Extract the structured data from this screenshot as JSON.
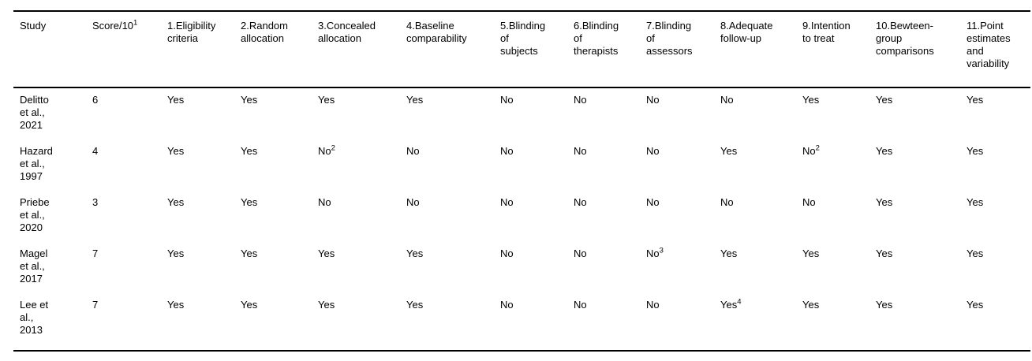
{
  "page": {
    "background_color": "#ffffff",
    "text_color": "#000000",
    "rule_color": "#000000"
  },
  "table": {
    "description": "PEDro-style methodological quality assessment table",
    "columns": [
      {
        "label": "Study"
      },
      {
        "label": "Score/10^1"
      },
      {
        "label": "1.Eligibility\ncriteria"
      },
      {
        "label": "2.Random\nallocation"
      },
      {
        "label": "3.Concealed\nallocation"
      },
      {
        "label": "4.Baseline\ncomparability"
      },
      {
        "label": "5.Blinding\nof\nsubjects"
      },
      {
        "label": "6.Blinding\nof\ntherapists"
      },
      {
        "label": "7.Blinding\nof\nassessors"
      },
      {
        "label": "8.Adequate\nfollow-up"
      },
      {
        "label": "9.Intention\nto treat"
      },
      {
        "label": "10.Bewteen-\ngroup\ncomparisons"
      },
      {
        "label": "11.Point\nestimates\nand\nvariability"
      }
    ],
    "rows": [
      {
        "cells": [
          "Delitto\net al.,\n2021",
          "6",
          "Yes",
          "Yes",
          "Yes",
          "Yes",
          "No",
          "No",
          "No",
          "No",
          "Yes",
          "Yes",
          "Yes"
        ]
      },
      {
        "cells": [
          "Hazard\net al.,\n1997",
          "4",
          "Yes",
          "Yes",
          "No^2",
          "No",
          "No",
          "No",
          "No",
          "Yes",
          "No^2",
          "Yes",
          "Yes"
        ]
      },
      {
        "cells": [
          "Priebe\net al.,\n2020",
          "3",
          "Yes",
          "Yes",
          "No",
          "No",
          "No",
          "No",
          "No",
          "No",
          "No",
          "Yes",
          "Yes"
        ]
      },
      {
        "cells": [
          "Magel\net al.,\n2017",
          "7",
          "Yes",
          "Yes",
          "Yes",
          "Yes",
          "No",
          "No",
          "No^3",
          "Yes",
          "Yes",
          "Yes",
          "Yes"
        ]
      },
      {
        "cells": [
          "Lee et\nal.,\n2013",
          "7",
          "Yes",
          "Yes",
          "Yes",
          "Yes",
          "No",
          "No",
          "No",
          "Yes^4",
          "Yes",
          "Yes",
          "Yes"
        ]
      }
    ]
  }
}
